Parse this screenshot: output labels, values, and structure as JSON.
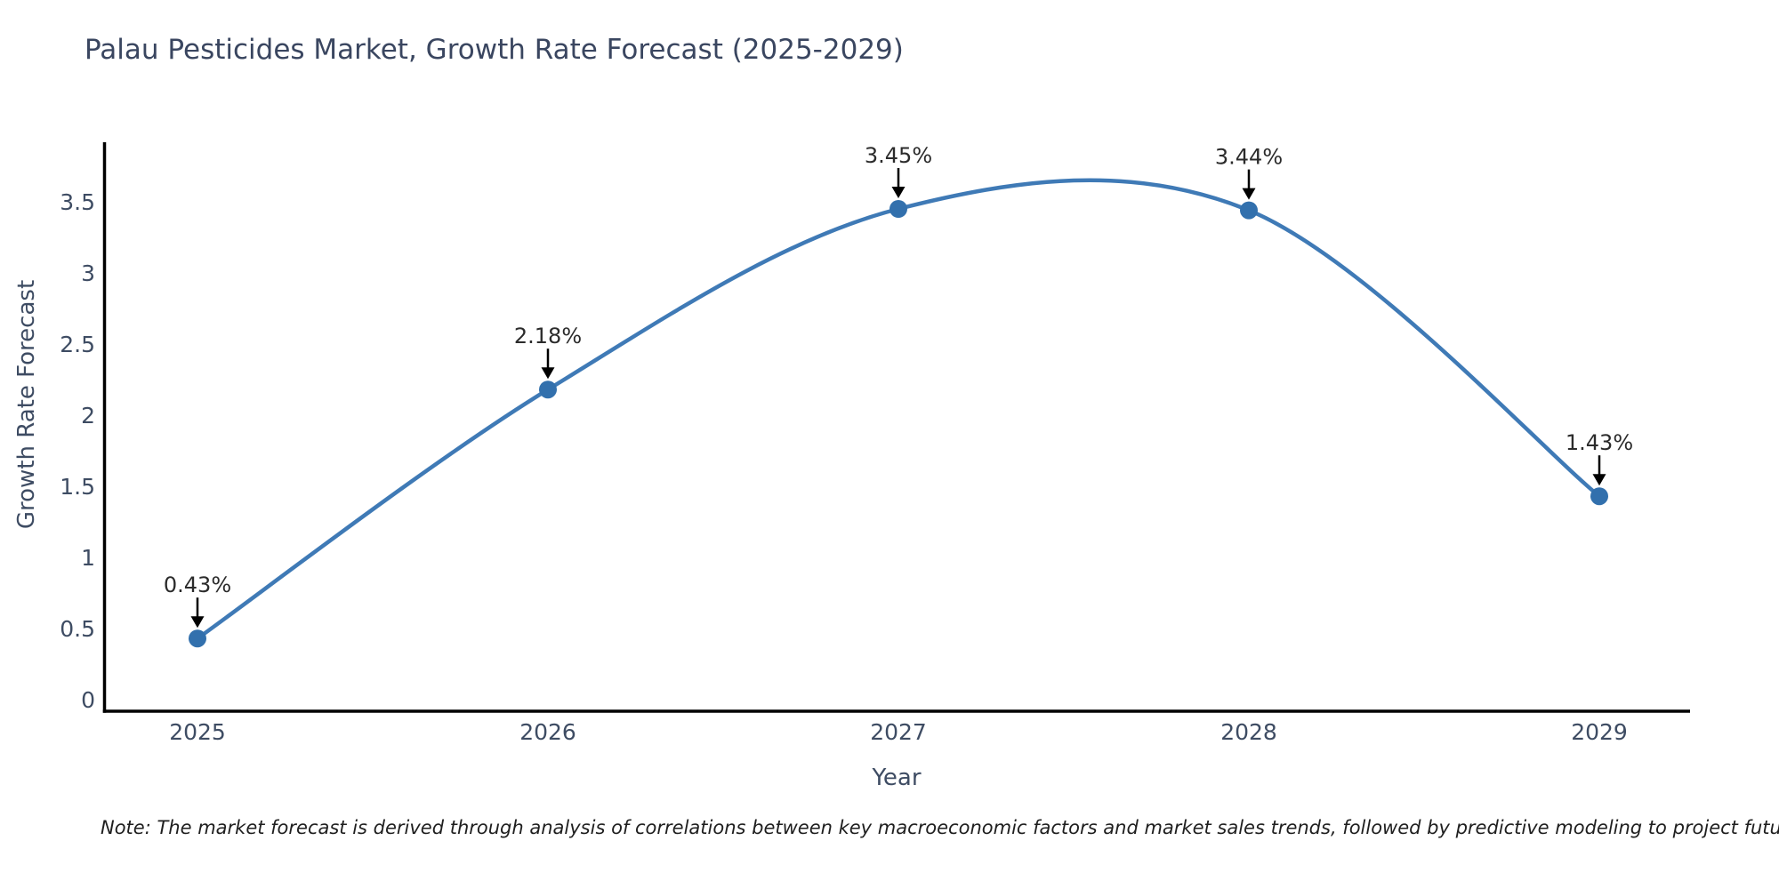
{
  "chart_data": {
    "type": "line",
    "title": "Palau Pesticides Market, Growth Rate Forecast (2025-2029)",
    "xlabel": "Year",
    "ylabel": "Growth Rate Forecast",
    "x": [
      2025,
      2026,
      2027,
      2028,
      2029
    ],
    "x_tick_labels": [
      "2025",
      "2026",
      "2027",
      "2028",
      "2029"
    ],
    "series": [
      {
        "name": "Growth Rate Forecast",
        "values": [
          0.43,
          2.18,
          3.45,
          3.44,
          1.43
        ],
        "point_labels": [
          "0.43%",
          "2.18%",
          "3.45%",
          "3.44%",
          "1.43%"
        ]
      }
    ],
    "y_ticks": [
      0,
      0.5,
      1,
      1.5,
      2,
      2.5,
      3,
      3.5
    ],
    "y_tick_labels": [
      "0",
      "0.5",
      "1",
      "1.5",
      "2",
      "2.5",
      "3",
      "3.5"
    ],
    "ylim": [
      0,
      3.92
    ],
    "line_shape": "spline",
    "grid": false,
    "legend_position": "none",
    "colors": {
      "line": "#3f7ab6",
      "marker": "#3270ad",
      "axis": "#000000",
      "tick_text": "#3e4c63",
      "annotation": "#2b2b2b",
      "title": "#3a4660"
    }
  },
  "note": "Note: The market forecast is derived through analysis of correlations between key macroeconomic factors and market sales trends, followed by predictive modeling to project future sales"
}
